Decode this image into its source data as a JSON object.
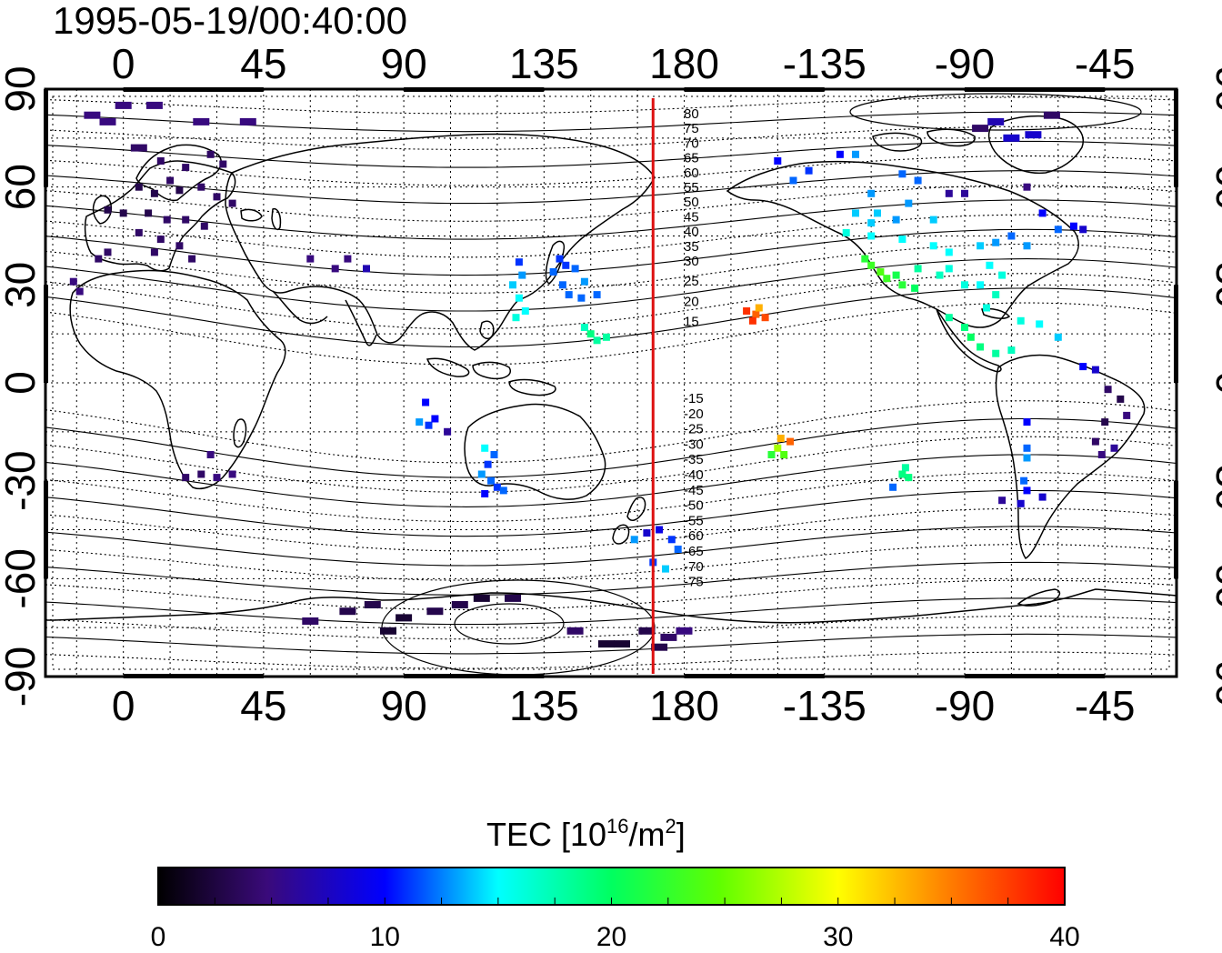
{
  "map": {
    "timestamp": "1995-05-19/00:40:00",
    "meridian_marker_lon": 170,
    "marker_color": "#dd1111"
  },
  "x_ticks": [
    "0",
    "45",
    "90",
    "135",
    "180",
    "-135",
    "-90",
    "-45"
  ],
  "y_ticks": [
    "90",
    "60",
    "30",
    "0",
    "-30",
    "-60",
    "-90"
  ],
  "contour_labels_north": [
    "80",
    "75",
    "70",
    "65",
    "60",
    "55",
    "50",
    "45",
    "40",
    "35",
    "30",
    "25",
    "20",
    "15"
  ],
  "contour_labels_south": [
    "-15",
    "-20",
    "-25",
    "-30",
    "-35",
    "-40",
    "-45",
    "-50",
    "-55",
    "-60",
    "-65",
    "-70",
    "-75"
  ],
  "colorbar": {
    "title_prefix": "TEC  [10",
    "title_sup1": "16",
    "title_mid": "/m",
    "title_sup2": "2",
    "title_suffix": "]",
    "min": 0,
    "max": 40,
    "tick_labels": [
      "0",
      "10",
      "20",
      "30",
      "40"
    ],
    "tick_values": [
      0,
      10,
      20,
      30,
      40
    ]
  },
  "observations": [
    {
      "lon": -10,
      "lat": 82,
      "tec": 5
    },
    {
      "lon": -5,
      "lat": 80,
      "tec": 5
    },
    {
      "lon": 0,
      "lat": 85,
      "tec": 5
    },
    {
      "lon": 10,
      "lat": 85,
      "tec": 5
    },
    {
      "lon": 25,
      "lat": 80,
      "tec": 5
    },
    {
      "lon": 40,
      "lat": 80,
      "tec": 5
    },
    {
      "lon": 5,
      "lat": 72,
      "tec": 4
    },
    {
      "lon": 12,
      "lat": 68,
      "tec": 4
    },
    {
      "lon": 20,
      "lat": 66,
      "tec": 4
    },
    {
      "lon": 28,
      "lat": 70,
      "tec": 4
    },
    {
      "lon": 32,
      "lat": 67,
      "tec": 4
    },
    {
      "lon": 15,
      "lat": 62,
      "tec": 4
    },
    {
      "lon": 5,
      "lat": 60,
      "tec": 3
    },
    {
      "lon": 10,
      "lat": 58,
      "tec": 3
    },
    {
      "lon": 18,
      "lat": 59,
      "tec": 3
    },
    {
      "lon": 25,
      "lat": 60,
      "tec": 4
    },
    {
      "lon": 30,
      "lat": 57,
      "tec": 4
    },
    {
      "lon": -5,
      "lat": 53,
      "tec": 3
    },
    {
      "lon": 0,
      "lat": 52,
      "tec": 3
    },
    {
      "lon": 8,
      "lat": 52,
      "tec": 3
    },
    {
      "lon": 14,
      "lat": 50,
      "tec": 4
    },
    {
      "lon": 20,
      "lat": 50,
      "tec": 4
    },
    {
      "lon": 26,
      "lat": 48,
      "tec": 4
    },
    {
      "lon": 5,
      "lat": 46,
      "tec": 4
    },
    {
      "lon": 12,
      "lat": 44,
      "tec": 4
    },
    {
      "lon": 18,
      "lat": 42,
      "tec": 4
    },
    {
      "lon": 22,
      "lat": 38,
      "tec": 4
    },
    {
      "lon": 10,
      "lat": 40,
      "tec": 4
    },
    {
      "lon": -5,
      "lat": 40,
      "tec": 4
    },
    {
      "lon": -8,
      "lat": 38,
      "tec": 4
    },
    {
      "lon": -14,
      "lat": 28,
      "tec": 5
    },
    {
      "lon": -16,
      "lat": 31,
      "tec": 5
    },
    {
      "lon": 35,
      "lat": 55,
      "tec": 4
    },
    {
      "lon": 60,
      "lat": 38,
      "tec": 5
    },
    {
      "lon": 68,
      "lat": 35,
      "tec": 5
    },
    {
      "lon": 72,
      "lat": 38,
      "tec": 5
    },
    {
      "lon": 78,
      "lat": 35,
      "tec": 7
    },
    {
      "lon": 127,
      "lat": 37,
      "tec": 11
    },
    {
      "lon": 128,
      "lat": 33,
      "tec": 13
    },
    {
      "lon": 125,
      "lat": 30,
      "tec": 14
    },
    {
      "lon": 127,
      "lat": 26,
      "tec": 15
    },
    {
      "lon": 129,
      "lat": 22,
      "tec": 15
    },
    {
      "lon": 126,
      "lat": 20,
      "tec": 16
    },
    {
      "lon": 140,
      "lat": 38,
      "tec": 11
    },
    {
      "lon": 142,
      "lat": 36,
      "tec": 11
    },
    {
      "lon": 138,
      "lat": 34,
      "tec": 12
    },
    {
      "lon": 145,
      "lat": 35,
      "tec": 12
    },
    {
      "lon": 141,
      "lat": 30,
      "tec": 12
    },
    {
      "lon": 148,
      "lat": 31,
      "tec": 13
    },
    {
      "lon": 143,
      "lat": 27,
      "tec": 12
    },
    {
      "lon": 147,
      "lat": 26,
      "tec": 12
    },
    {
      "lon": 152,
      "lat": 27,
      "tec": 12
    },
    {
      "lon": 148,
      "lat": 17,
      "tec": 17
    },
    {
      "lon": 150,
      "lat": 15,
      "tec": 19
    },
    {
      "lon": 152,
      "lat": 13,
      "tec": 18
    },
    {
      "lon": 155,
      "lat": 14,
      "tec": 18
    },
    {
      "lon": 97,
      "lat": -6,
      "tec": 10
    },
    {
      "lon": 95,
      "lat": -12,
      "tec": 13
    },
    {
      "lon": 98,
      "lat": -13,
      "tec": 11
    },
    {
      "lon": 100,
      "lat": -11,
      "tec": 10
    },
    {
      "lon": 104,
      "lat": -15,
      "tec": 6
    },
    {
      "lon": 116,
      "lat": -20,
      "tec": 15
    },
    {
      "lon": 119,
      "lat": -22,
      "tec": 12
    },
    {
      "lon": 117,
      "lat": -25,
      "tec": 11
    },
    {
      "lon": 115,
      "lat": -28,
      "tec": 13
    },
    {
      "lon": 118,
      "lat": -30,
      "tec": 12
    },
    {
      "lon": 120,
      "lat": -32,
      "tec": 11
    },
    {
      "lon": 116,
      "lat": -34,
      "tec": 10
    },
    {
      "lon": 122,
      "lat": -33,
      "tec": 12
    },
    {
      "lon": 28,
      "lat": -22,
      "tec": 5
    },
    {
      "lon": 25,
      "lat": -28,
      "tec": 4
    },
    {
      "lon": 30,
      "lat": -29,
      "tec": 5
    },
    {
      "lon": 20,
      "lat": -29,
      "tec": 4
    },
    {
      "lon": 35,
      "lat": -28,
      "tec": 5
    },
    {
      "lon": 168,
      "lat": -46,
      "tec": 8
    },
    {
      "lon": 172,
      "lat": -45,
      "tec": 9
    },
    {
      "lon": 176,
      "lat": -48,
      "tec": 11
    },
    {
      "lon": 178,
      "lat": -51,
      "tec": 12
    },
    {
      "lon": 170,
      "lat": -55,
      "tec": 11
    },
    {
      "lon": 174,
      "lat": -57,
      "tec": 14
    },
    {
      "lon": 164,
      "lat": -48,
      "tec": 13
    },
    {
      "lon": 60,
      "lat": -73,
      "tec": 4
    },
    {
      "lon": 72,
      "lat": -70,
      "tec": 3
    },
    {
      "lon": 80,
      "lat": -68,
      "tec": 3
    },
    {
      "lon": 90,
      "lat": -72,
      "tec": 2
    },
    {
      "lon": 100,
      "lat": -70,
      "tec": 3
    },
    {
      "lon": 108,
      "lat": -68,
      "tec": 3
    },
    {
      "lon": 115,
      "lat": -66,
      "tec": 2
    },
    {
      "lon": 125,
      "lat": -66,
      "tec": 3
    },
    {
      "lon": 145,
      "lat": -76,
      "tec": 4
    },
    {
      "lon": 155,
      "lat": -80,
      "tec": 2
    },
    {
      "lon": 160,
      "lat": -80,
      "tec": 2
    },
    {
      "lon": 168,
      "lat": -76,
      "tec": 3
    },
    {
      "lon": 175,
      "lat": -78,
      "tec": 4
    },
    {
      "lon": 180,
      "lat": -76,
      "tec": 5
    },
    {
      "lon": 172,
      "lat": -81,
      "tec": 3
    },
    {
      "lon": 85,
      "lat": -76,
      "tec": 2
    },
    {
      "lon": -160,
      "lat": 22,
      "tec": 38
    },
    {
      "lon": -157,
      "lat": 21,
      "tec": 36
    },
    {
      "lon": -156,
      "lat": 23,
      "tec": 33
    },
    {
      "lon": -158,
      "lat": 19,
      "tec": 38
    },
    {
      "lon": -154,
      "lat": 20,
      "tec": 37
    },
    {
      "lon": -149,
      "lat": -17,
      "tec": 33
    },
    {
      "lon": -150,
      "lat": -20,
      "tec": 27
    },
    {
      "lon": -148,
      "lat": -22,
      "tec": 24
    },
    {
      "lon": -152,
      "lat": -22,
      "tec": 22
    },
    {
      "lon": -146,
      "lat": -18,
      "tec": 36
    },
    {
      "lon": -109,
      "lat": -26,
      "tec": 18
    },
    {
      "lon": -110,
      "lat": -28,
      "tec": 19
    },
    {
      "lon": -108,
      "lat": -29,
      "tec": 19
    },
    {
      "lon": -113,
      "lat": -32,
      "tec": 12
    },
    {
      "lon": -150,
      "lat": 68,
      "tec": 10
    },
    {
      "lon": -145,
      "lat": 62,
      "tec": 12
    },
    {
      "lon": -140,
      "lat": 65,
      "tec": 11
    },
    {
      "lon": -130,
      "lat": 70,
      "tec": 10
    },
    {
      "lon": -125,
      "lat": 70,
      "tec": 13
    },
    {
      "lon": -110,
      "lat": 64,
      "tec": 12
    },
    {
      "lon": -105,
      "lat": 62,
      "tec": 12
    },
    {
      "lon": -95,
      "lat": 58,
      "tec": 6
    },
    {
      "lon": -90,
      "lat": 58,
      "tec": 6
    },
    {
      "lon": -120,
      "lat": 58,
      "tec": 13
    },
    {
      "lon": -125,
      "lat": 52,
      "tec": 14
    },
    {
      "lon": -118,
      "lat": 52,
      "tec": 14
    },
    {
      "lon": -112,
      "lat": 50,
      "tec": 13
    },
    {
      "lon": -108,
      "lat": 55,
      "tec": 13
    },
    {
      "lon": -100,
      "lat": 50,
      "tec": 14
    },
    {
      "lon": -128,
      "lat": 46,
      "tec": 16
    },
    {
      "lon": -120,
      "lat": 45,
      "tec": 15
    },
    {
      "lon": -110,
      "lat": 44,
      "tec": 15
    },
    {
      "lon": -100,
      "lat": 42,
      "tec": 15
    },
    {
      "lon": -95,
      "lat": 40,
      "tec": 15
    },
    {
      "lon": -85,
      "lat": 42,
      "tec": 14
    },
    {
      "lon": -80,
      "lat": 43,
      "tec": 13
    },
    {
      "lon": -75,
      "lat": 45,
      "tec": 12
    },
    {
      "lon": -70,
      "lat": 42,
      "tec": 13
    },
    {
      "lon": -122,
      "lat": 38,
      "tec": 22
    },
    {
      "lon": -120,
      "lat": 36,
      "tec": 23
    },
    {
      "lon": -117,
      "lat": 34,
      "tec": 24
    },
    {
      "lon": -115,
      "lat": 32,
      "tec": 23
    },
    {
      "lon": -112,
      "lat": 33,
      "tec": 21
    },
    {
      "lon": -110,
      "lat": 30,
      "tec": 22
    },
    {
      "lon": -106,
      "lat": 29,
      "tec": 20
    },
    {
      "lon": -105,
      "lat": 35,
      "tec": 18
    },
    {
      "lon": -98,
      "lat": 33,
      "tec": 17
    },
    {
      "lon": -90,
      "lat": 30,
      "tec": 16
    },
    {
      "lon": -85,
      "lat": 30,
      "tec": 15
    },
    {
      "lon": -80,
      "lat": 27,
      "tec": 17
    },
    {
      "lon": -78,
      "lat": 33,
      "tec": 16
    },
    {
      "lon": -82,
      "lat": 36,
      "tec": 15
    },
    {
      "lon": -95,
      "lat": 35,
      "tec": 16
    },
    {
      "lon": -120,
      "lat": 49,
      "tec": 14
    },
    {
      "lon": -60,
      "lat": 47,
      "tec": 12
    },
    {
      "lon": -55,
      "lat": 48,
      "tec": 10
    },
    {
      "lon": -52,
      "lat": 47,
      "tec": 8
    },
    {
      "lon": -65,
      "lat": 52,
      "tec": 10
    },
    {
      "lon": -70,
      "lat": 60,
      "tec": 5
    },
    {
      "lon": -75,
      "lat": 75,
      "tec": 8
    },
    {
      "lon": -80,
      "lat": 80,
      "tec": 7
    },
    {
      "lon": -85,
      "lat": 78,
      "tec": 4
    },
    {
      "lon": -68,
      "lat": 76,
      "tec": 8
    },
    {
      "lon": -62,
      "lat": 82,
      "tec": 4
    },
    {
      "lon": -95,
      "lat": 20,
      "tec": 18
    },
    {
      "lon": -90,
      "lat": 17,
      "tec": 19
    },
    {
      "lon": -88,
      "lat": 14,
      "tec": 20
    },
    {
      "lon": -85,
      "lat": 11,
      "tec": 19
    },
    {
      "lon": -80,
      "lat": 9,
      "tec": 18
    },
    {
      "lon": -75,
      "lat": 10,
      "tec": 17
    },
    {
      "lon": -83,
      "lat": 23,
      "tec": 16
    },
    {
      "lon": -72,
      "lat": 19,
      "tec": 16
    },
    {
      "lon": -66,
      "lat": 18,
      "tec": 15
    },
    {
      "lon": -60,
      "lat": 14,
      "tec": 14
    },
    {
      "lon": -52,
      "lat": 5,
      "tec": 10
    },
    {
      "lon": -48,
      "lat": 4,
      "tec": 8
    },
    {
      "lon": -44,
      "lat": -2,
      "tec": 4
    },
    {
      "lon": -40,
      "lat": -5,
      "tec": 3
    },
    {
      "lon": -38,
      "lat": -10,
      "tec": 5
    },
    {
      "lon": -45,
      "lat": -12,
      "tec": 3
    },
    {
      "lon": -48,
      "lat": -18,
      "tec": 4
    },
    {
      "lon": -46,
      "lat": -22,
      "tec": 5
    },
    {
      "lon": -42,
      "lat": -20,
      "tec": 6
    },
    {
      "lon": -70,
      "lat": -12,
      "tec": 10
    },
    {
      "lon": -70,
      "lat": -20,
      "tec": 12
    },
    {
      "lon": -70,
      "lat": -23,
      "tec": 13
    },
    {
      "lon": -71,
      "lat": -30,
      "tec": 12
    },
    {
      "lon": -70,
      "lat": -33,
      "tec": 10
    },
    {
      "lon": -72,
      "lat": -37,
      "tec": 8
    },
    {
      "lon": -65,
      "lat": -35,
      "tec": 8
    },
    {
      "lon": -78,
      "lat": -36,
      "tec": 6
    }
  ]
}
